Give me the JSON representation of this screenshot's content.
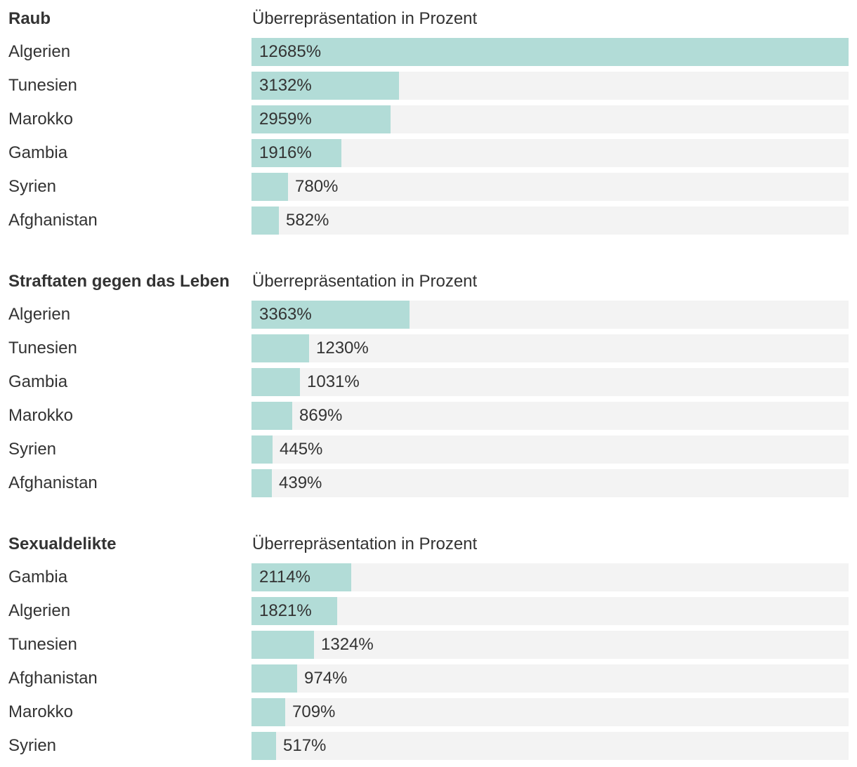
{
  "colors": {
    "bar": "#b2dcd7",
    "track": "#f3f3f3",
    "text": "#333333"
  },
  "chart_data": [
    {
      "type": "bar",
      "orientation": "horizontal",
      "title": "Raub",
      "xlabel": "Überrepräsentation in Prozent",
      "value_suffix": "%",
      "xlim": [
        0,
        12685
      ],
      "categories": [
        "Algerien",
        "Tunesien",
        "Marokko",
        "Gambia",
        "Syrien",
        "Afghanistan"
      ],
      "values": [
        12685,
        3132,
        2959,
        1916,
        780,
        582
      ]
    },
    {
      "type": "bar",
      "orientation": "horizontal",
      "title": "Straftaten gegen das Leben",
      "xlabel": "Überrepräsentation in Prozent",
      "value_suffix": "%",
      "xlim": [
        0,
        12685
      ],
      "categories": [
        "Algerien",
        "Tunesien",
        "Gambia",
        "Marokko",
        "Syrien",
        "Afghanistan"
      ],
      "values": [
        3363,
        1230,
        1031,
        869,
        445,
        439
      ]
    },
    {
      "type": "bar",
      "orientation": "horizontal",
      "title": "Sexualdelikte",
      "xlabel": "Überrepräsentation in Prozent",
      "value_suffix": "%",
      "xlim": [
        0,
        12685
      ],
      "categories": [
        "Gambia",
        "Algerien",
        "Tunesien",
        "Afghanistan",
        "Marokko",
        "Syrien"
      ],
      "values": [
        2114,
        1821,
        1324,
        974,
        709,
        517
      ]
    }
  ]
}
